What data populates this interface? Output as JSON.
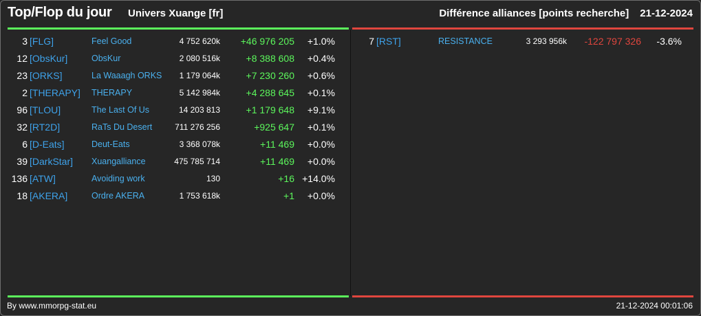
{
  "header": {
    "title": "Top/Flop du jour",
    "subtitle": "Univers Xuange [fr]",
    "category": "Différence alliances [points recherche]",
    "date": "21-12-2024"
  },
  "colors": {
    "accent_up": "#5cf75c",
    "accent_down": "#e0463e",
    "link": "#3ea2ea",
    "background": "#262626"
  },
  "top": [
    {
      "rank": "3",
      "tag": "[FLG]",
      "name": "Feel Good",
      "points": "4 752 620k",
      "diff": "+46 976 205",
      "pct": "+1.0%"
    },
    {
      "rank": "12",
      "tag": "[ObsKur]",
      "name": "ObsKur",
      "points": "2 080 516k",
      "diff": "+8 388 608",
      "pct": "+0.4%"
    },
    {
      "rank": "23",
      "tag": "[ORKS]",
      "name": "La Waaagh ORKS",
      "points": "1 179 064k",
      "diff": "+7 230 260",
      "pct": "+0.6%"
    },
    {
      "rank": "2",
      "tag": "[THERAPY]",
      "name": "THERAPY",
      "points": "5 142 984k",
      "diff": "+4 288 645",
      "pct": "+0.1%"
    },
    {
      "rank": "96",
      "tag": "[TLOU]",
      "name": "The Last Of Us",
      "points": "14 203 813",
      "diff": "+1 179 648",
      "pct": "+9.1%"
    },
    {
      "rank": "32",
      "tag": "[RT2D]",
      "name": "RaTs Du Desert",
      "points": "711 276 256",
      "diff": "+925 647",
      "pct": "+0.1%"
    },
    {
      "rank": "6",
      "tag": "[D-Eats]",
      "name": "Deut-Eats",
      "points": "3 368 078k",
      "diff": "+11 469",
      "pct": "+0.0%"
    },
    {
      "rank": "39",
      "tag": "[DarkStar]",
      "name": "Xuangalliance",
      "points": "475 785 714",
      "diff": "+11 469",
      "pct": "+0.0%"
    },
    {
      "rank": "136",
      "tag": "[ATW]",
      "name": "Avoiding work",
      "points": "130",
      "diff": "+16",
      "pct": "+14.0%"
    },
    {
      "rank": "18",
      "tag": "[AKERA]",
      "name": "Ordre AKERA",
      "points": "1 753 618k",
      "diff": "+1",
      "pct": "+0.0%"
    }
  ],
  "flop": [
    {
      "rank": "7",
      "tag": "[RST]",
      "name": "RESISTANCE",
      "points": "3 293 956k",
      "diff": "-122 797 326",
      "pct": "-3.6%"
    }
  ],
  "footer": {
    "credit": "By www.mmorpg-stat.eu",
    "timestamp": "21-12-2024 00:01:06"
  }
}
